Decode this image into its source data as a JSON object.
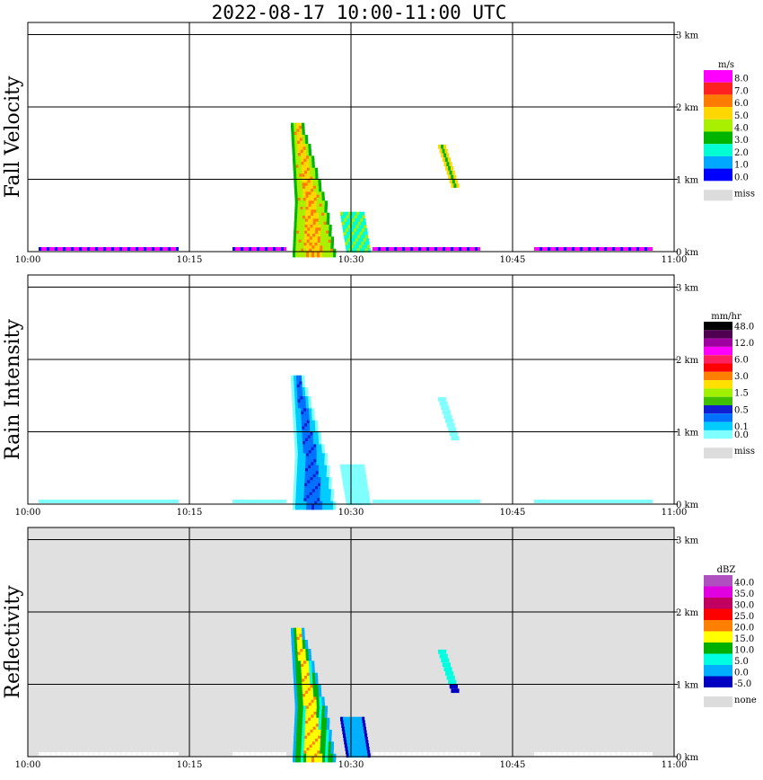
{
  "title": "2022-08-17  10:00-11:00 UTC",
  "x_ticks": [
    "10:00",
    "10:15",
    "10:30",
    "10:45",
    "11:00"
  ],
  "y_ticks": [
    "0 km",
    "1 km",
    "2 km",
    "3 km"
  ],
  "panels": [
    {
      "label": "Fall Velocity",
      "unit": "m/s",
      "background": "#ffffff",
      "colorbar": [
        {
          "label": "8.0",
          "color": "#ff00ff"
        },
        {
          "label": "7.0",
          "color": "#ff2020"
        },
        {
          "label": "6.0",
          "color": "#ff7a00"
        },
        {
          "label": "5.0",
          "color": "#ffd700"
        },
        {
          "label": "4.0",
          "color": "#a8f000"
        },
        {
          "label": "3.0",
          "color": "#00b400"
        },
        {
          "label": "2.0",
          "color": "#00ffd2"
        },
        {
          "label": "1.0",
          "color": "#00a8ff"
        },
        {
          "label": "0.0",
          "color": "#0000ff"
        }
      ],
      "miss_label": "miss"
    },
    {
      "label": "Rain Intensity",
      "unit": "mm/hr",
      "background": "#ffffff",
      "colorbar": [
        {
          "label": "48.0",
          "color": "#000000"
        },
        {
          "label": "",
          "color": "#500050"
        },
        {
          "label": "12.0",
          "color": "#a000a0"
        },
        {
          "label": "",
          "color": "#ff00ff"
        },
        {
          "label": "6.0",
          "color": "#ff2060"
        },
        {
          "label": "",
          "color": "#ff0000"
        },
        {
          "label": "3.0",
          "color": "#ff8000"
        },
        {
          "label": "",
          "color": "#ffe000"
        },
        {
          "label": "1.5",
          "color": "#a0f000"
        },
        {
          "label": "",
          "color": "#40c000"
        },
        {
          "label": "0.5",
          "color": "#1020d0"
        },
        {
          "label": "",
          "color": "#0070ff"
        },
        {
          "label": "0.1",
          "color": "#00ccff"
        },
        {
          "label": "0.0",
          "color": "#80ffff"
        }
      ],
      "miss_label": "miss"
    },
    {
      "label": "Reflectivity",
      "unit": "dBZ",
      "background": "#e0e0e0",
      "colorbar": [
        {
          "label": "40.0",
          "color": "#b050c0"
        },
        {
          "label": "35.0",
          "color": "#e000e0"
        },
        {
          "label": "30.0",
          "color": "#c00060"
        },
        {
          "label": "25.0",
          "color": "#ff0000"
        },
        {
          "label": "20.0",
          "color": "#ff8000"
        },
        {
          "label": "15.0",
          "color": "#ffff00"
        },
        {
          "label": "10.0",
          "color": "#00b000"
        },
        {
          "label": "5.0",
          "color": "#00ffe0"
        },
        {
          "label": "0.0",
          "color": "#00b0ff"
        },
        {
          "label": "-5.0",
          "color": "#0000c0"
        }
      ],
      "miss_label": "none"
    }
  ],
  "chart_data": {
    "type": "heatmap",
    "title": "2022-08-17  10:00-11:00 UTC",
    "x_range": [
      "10:00",
      "11:00"
    ],
    "ylim_km": [
      0,
      3.2
    ],
    "grid": true,
    "features": [
      {
        "name": "main rain shaft",
        "time_start": "10:24",
        "time_end": "10:28",
        "top_km": 1.78
      },
      {
        "name": "light trailing echo",
        "time_start": "10:29",
        "time_end": "10:31",
        "top_km": 0.55
      },
      {
        "name": "small elevated echo",
        "time_start": "10:38",
        "time_end": "10:41",
        "top_km": 1.48
      },
      {
        "name": "near-surface drizzle band",
        "time_start": "10:01",
        "time_end": "10:58",
        "top_km": 0.05
      }
    ]
  }
}
